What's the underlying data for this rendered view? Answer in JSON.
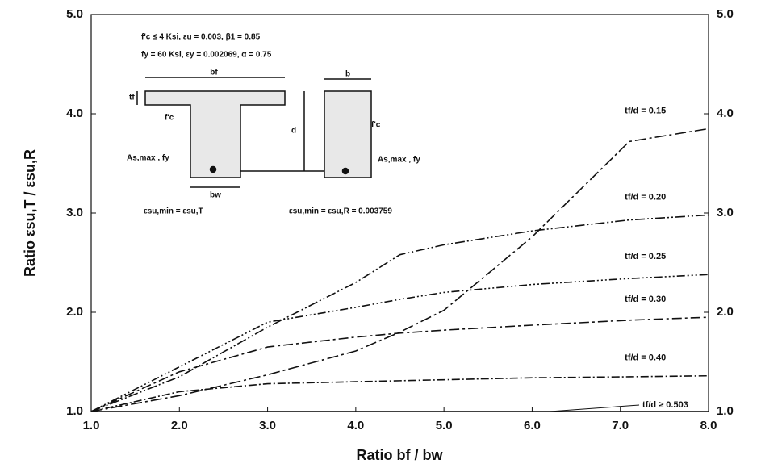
{
  "chart_data": {
    "type": "line",
    "x_label": "Ratio bf / bw",
    "y_label": "Ratio εsu,T / εsu,R",
    "x": [
      1.0,
      2.0,
      3.0,
      4.0,
      4.5,
      5.0,
      6.0,
      7.1,
      8.0
    ],
    "series": [
      {
        "name": "tf/d = 0.15",
        "color": "#111111",
        "values": [
          1.0,
          1.16,
          1.37,
          1.61,
          1.8,
          2.02,
          2.76,
          3.72,
          3.85
        ]
      },
      {
        "name": "tf/d = 0.20",
        "color": "#111111",
        "values": [
          1.0,
          1.35,
          1.85,
          2.3,
          2.58,
          2.68,
          2.82,
          2.93,
          2.98
        ]
      },
      {
        "name": "tf/d = 0.25",
        "color": "#111111",
        "values": [
          1.0,
          1.45,
          1.9,
          2.05,
          2.13,
          2.2,
          2.28,
          2.34,
          2.38
        ]
      },
      {
        "name": "tf/d = 0.30",
        "color": "#111111",
        "values": [
          1.0,
          1.4,
          1.65,
          1.75,
          1.79,
          1.82,
          1.87,
          1.92,
          1.95
        ]
      },
      {
        "name": "tf/d = 0.40",
        "color": "#111111",
        "values": [
          1.0,
          1.2,
          1.28,
          1.3,
          1.31,
          1.32,
          1.34,
          1.35,
          1.36
        ]
      },
      {
        "name": "tf/d ≥ 0.503",
        "color": "#111111",
        "values": [
          1.0,
          1.0,
          1.0,
          1.0,
          1.0,
          1.0,
          1.0,
          1.0,
          1.0
        ]
      }
    ],
    "xlim": [
      1.0,
      8.0
    ],
    "xticks": [
      {
        "value": 1,
        "label": "1.0"
      },
      {
        "value": 2,
        "label": "2.0"
      },
      {
        "value": 3,
        "label": "3.0"
      },
      {
        "value": 4,
        "label": "4.0"
      },
      {
        "value": 5,
        "label": "5.0"
      },
      {
        "value": 6,
        "label": "6.0"
      },
      {
        "value": 7,
        "label": "7.0"
      },
      {
        "value": 8,
        "label": "8.0"
      }
    ],
    "ylim": [
      1.0,
      5.0
    ],
    "yticks": [
      {
        "value": 1,
        "label": "1.0"
      },
      {
        "value": 2,
        "label": "2.0"
      },
      {
        "value": 3,
        "label": "3.0"
      },
      {
        "value": 4,
        "label": "4.0"
      },
      {
        "value": 5,
        "label": "5.0"
      }
    ],
    "y2lim": [
      1.0,
      5.0
    ],
    "y2ticks": [
      {
        "value": 1,
        "label": "1.0"
      },
      {
        "value": 2,
        "label": "2.0"
      },
      {
        "value": 3,
        "label": "3.0"
      },
      {
        "value": 4,
        "label": "4.0"
      },
      {
        "value": 5,
        "label": "5.0"
      }
    ],
    "annotations": [
      "f'c ≤ 4 Ksi,   εu = 0.003,        β1 = 0.85",
      "fy = 60 Ksi,  εy = 0.002069,  α = 0.75",
      "bf",
      "b",
      "tf",
      "f'c",
      "f'c",
      "d",
      "As,max , fy",
      "As,max , fy",
      "bw",
      "εsu,min = εsu,T",
      "εsu,min = εsu,R = 0.003759"
    ]
  }
}
